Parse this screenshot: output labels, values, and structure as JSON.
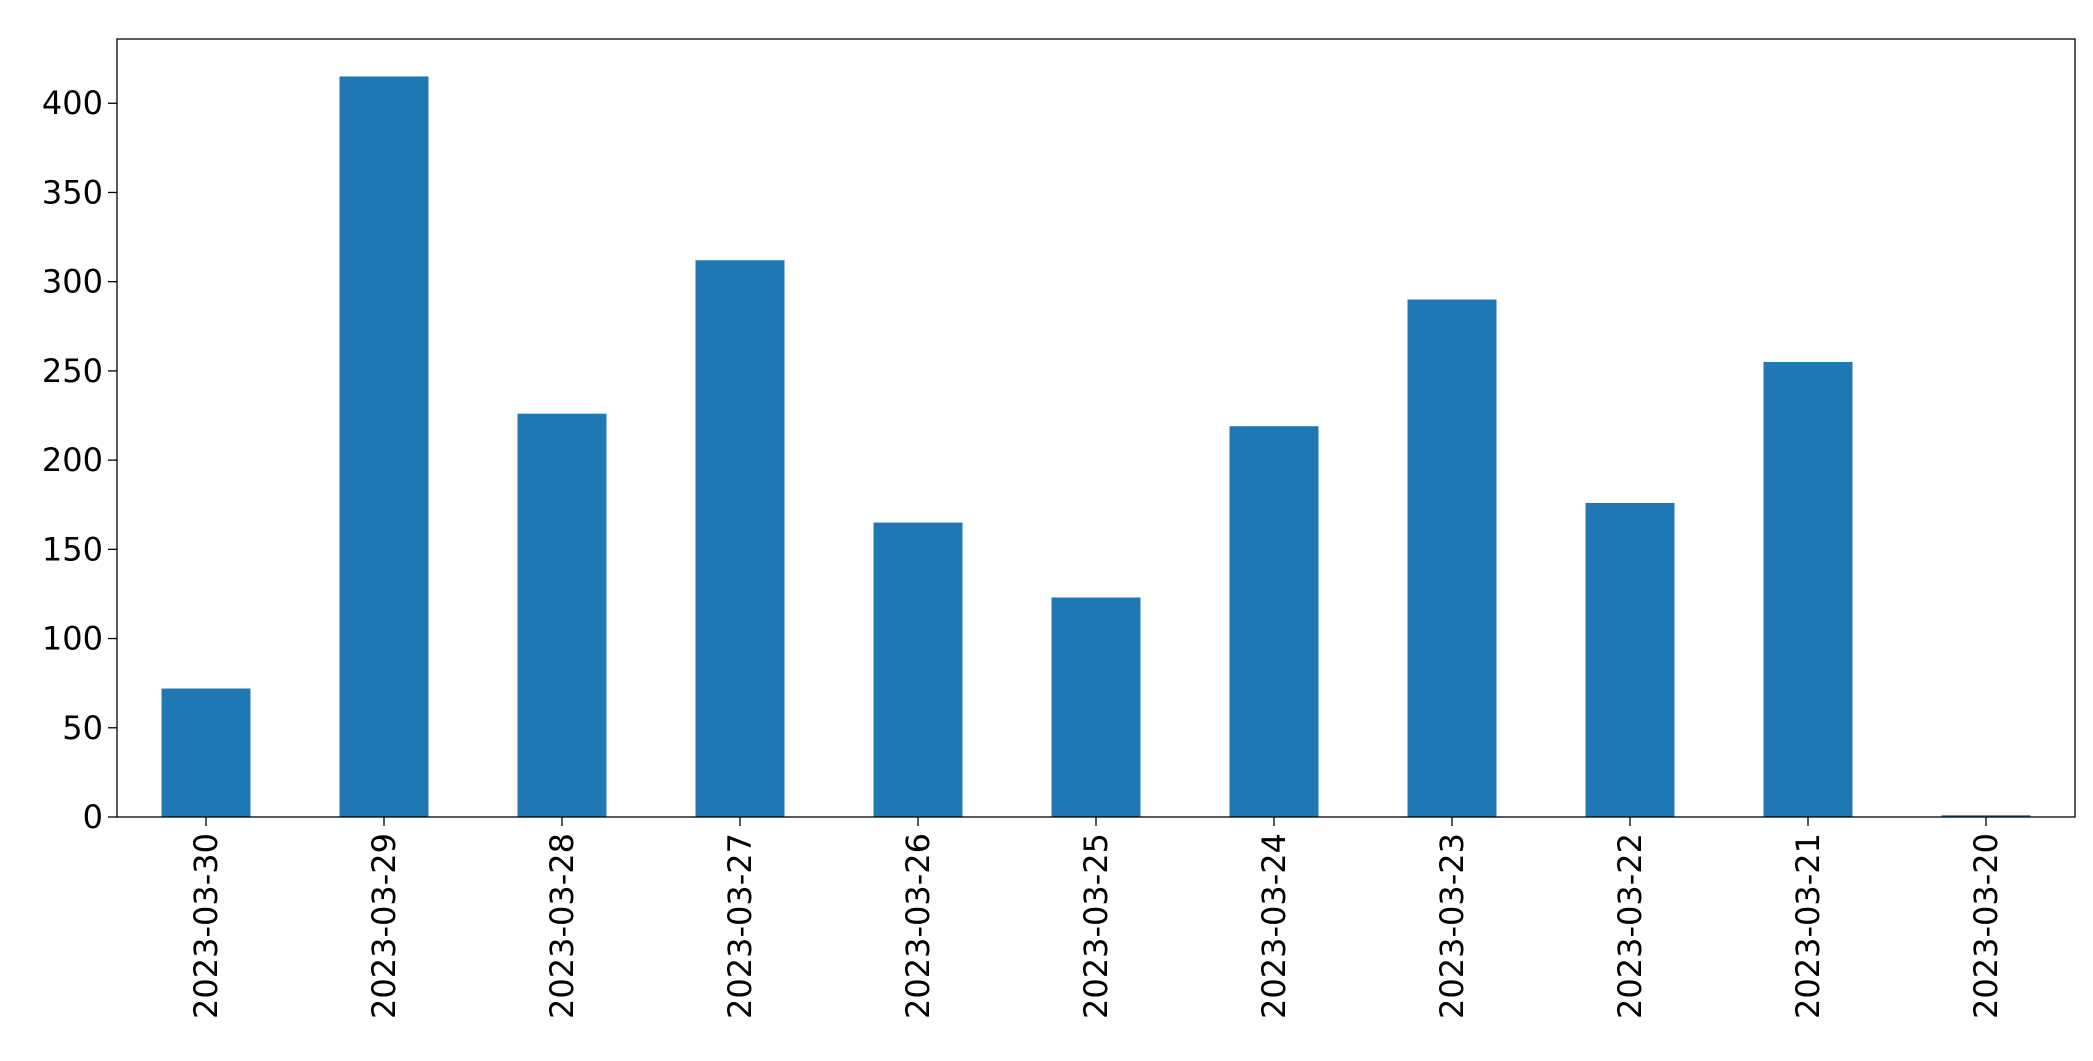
{
  "chart_data": {
    "type": "bar",
    "categories": [
      "2023-03-30",
      "2023-03-29",
      "2023-03-28",
      "2023-03-27",
      "2023-03-26",
      "2023-03-25",
      "2023-03-24",
      "2023-03-23",
      "2023-03-22",
      "2023-03-21",
      "2023-03-20"
    ],
    "values": [
      72,
      415,
      226,
      312,
      165,
      123,
      219,
      290,
      176,
      255,
      1
    ],
    "color": "#1f77b4",
    "ylim": [
      0,
      436
    ],
    "yticks": [
      0,
      50,
      100,
      150,
      200,
      250,
      300,
      350,
      400
    ],
    "grid": false
  }
}
